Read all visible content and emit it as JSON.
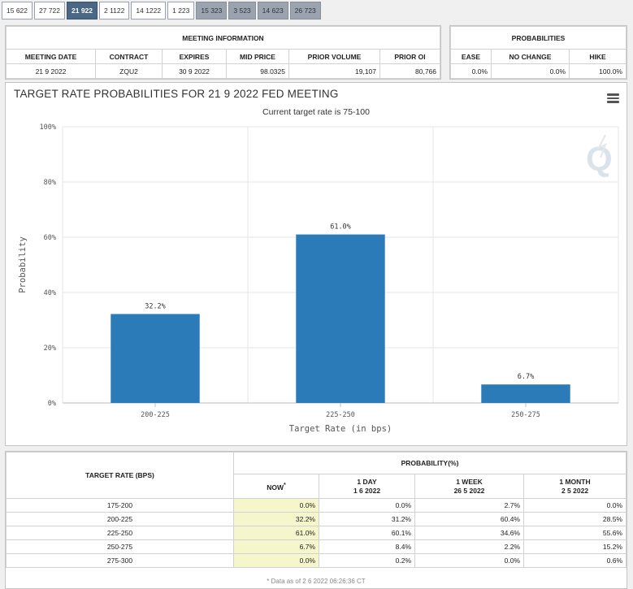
{
  "tabs": [
    {
      "label": "15 622",
      "state": "normal"
    },
    {
      "label": "27 722",
      "state": "normal"
    },
    {
      "label": "21 922",
      "state": "active"
    },
    {
      "label": "2 1122",
      "state": "normal"
    },
    {
      "label": "14 1222",
      "state": "normal"
    },
    {
      "label": "1 223",
      "state": "normal"
    },
    {
      "label": "15 323",
      "state": "dim"
    },
    {
      "label": "3 523",
      "state": "dim"
    },
    {
      "label": "14 623",
      "state": "dim"
    },
    {
      "label": "26 723",
      "state": "dim"
    }
  ],
  "meeting_info": {
    "title": "MEETING INFORMATION",
    "headers": [
      "MEETING DATE",
      "CONTRACT",
      "EXPIRES",
      "MID PRICE",
      "PRIOR VOLUME",
      "PRIOR OI"
    ],
    "values": [
      "21 9 2022",
      "ZQU2",
      "30 9 2022",
      "98.0325",
      "19,107",
      "80,766"
    ]
  },
  "probabilities": {
    "title": "PROBABILITIES",
    "headers": [
      "EASE",
      "NO CHANGE",
      "HIKE"
    ],
    "values": [
      "0.0%",
      "0.0%",
      "100.0%"
    ]
  },
  "chart_data": {
    "type": "bar",
    "title": "TARGET RATE PROBABILITIES FOR 21 9 2022 FED MEETING",
    "subtitle": "Current target rate is 75-100",
    "categories": [
      "200-225",
      "225-250",
      "250-275"
    ],
    "values": [
      32.2,
      61.0,
      6.7
    ],
    "value_labels": [
      "32.2%",
      "61.0%",
      "6.7%"
    ],
    "xlabel": "Target Rate (in bps)",
    "ylabel": "Probability",
    "ylim": [
      0,
      100
    ],
    "yticks": [
      0,
      20,
      40,
      60,
      80,
      100
    ],
    "ytick_labels": [
      "0%",
      "20%",
      "40%",
      "60%",
      "80%",
      "100%"
    ],
    "bar_color": "#2b7bb9",
    "grid": true
  },
  "prob_table": {
    "target_header": "TARGET RATE (BPS)",
    "prob_header": "PROBABILITY(%)",
    "columns": [
      {
        "label": "NOW",
        "marker": "*",
        "date": ""
      },
      {
        "label": "1 DAY",
        "date": "1 6 2022"
      },
      {
        "label": "1 WEEK",
        "date": "26 5 2022"
      },
      {
        "label": "1 MONTH",
        "date": "2 5 2022"
      }
    ],
    "rows": [
      {
        "rate": "175-200",
        "values": [
          "0.0%",
          "0.0%",
          "2.7%",
          "0.0%"
        ]
      },
      {
        "rate": "200-225",
        "values": [
          "32.2%",
          "31.2%",
          "60.4%",
          "28.5%"
        ]
      },
      {
        "rate": "225-250",
        "values": [
          "61.0%",
          "60.1%",
          "34.6%",
          "55.6%"
        ]
      },
      {
        "rate": "250-275",
        "values": [
          "6.7%",
          "8.4%",
          "2.2%",
          "15.2%"
        ]
      },
      {
        "rate": "275-300",
        "values": [
          "0.0%",
          "0.2%",
          "0.0%",
          "0.6%"
        ]
      }
    ],
    "note": "* Data as of 2 6 2022 06:26:36 CT"
  },
  "icons": {
    "menu": "hamburger-menu-icon",
    "watermark": "quikstrike-q-logo"
  }
}
